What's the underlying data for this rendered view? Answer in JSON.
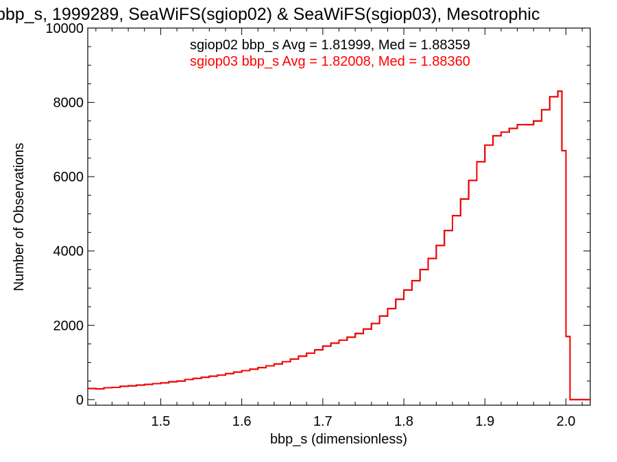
{
  "chart_data": {
    "type": "histogram",
    "title": "bbp_s, 1999289, SeaWiFS(sgiop02) & SeaWiFS(sgiop03), Mesotrophic",
    "xlabel": "bbp_s (dimensionless)",
    "ylabel": "Number of Observations",
    "xlim": [
      1.41,
      2.03
    ],
    "ylim": [
      -150,
      10000
    ],
    "xticks": [
      "1.5",
      "1.6",
      "1.7",
      "1.8",
      "1.9",
      "2.0"
    ],
    "xtick_values": [
      1.5,
      1.6,
      1.7,
      1.8,
      1.9,
      2.0
    ],
    "yticks": [
      "0",
      "2000",
      "4000",
      "6000",
      "8000",
      "10000"
    ],
    "ytick_values": [
      0,
      2000,
      4000,
      6000,
      8000,
      10000
    ],
    "annotations": [
      {
        "text": "sgiop02 bbp_s Avg = 1.81999, Med = 1.88359",
        "color": "#000000"
      },
      {
        "text": "sgiop03 bbp_s Avg = 1.82008, Med = 1.88360",
        "color": "#ff0000"
      }
    ],
    "series": [
      {
        "name": "sgiop02",
        "color": "#000000",
        "x": [
          1.41,
          1.42,
          1.43,
          1.44,
          1.45,
          1.46,
          1.47,
          1.48,
          1.49,
          1.5,
          1.51,
          1.52,
          1.53,
          1.54,
          1.55,
          1.56,
          1.57,
          1.58,
          1.59,
          1.6,
          1.61,
          1.62,
          1.63,
          1.64,
          1.65,
          1.66,
          1.67,
          1.68,
          1.69,
          1.7,
          1.71,
          1.72,
          1.73,
          1.74,
          1.75,
          1.76,
          1.77,
          1.78,
          1.79,
          1.8,
          1.81,
          1.82,
          1.83,
          1.84,
          1.85,
          1.86,
          1.87,
          1.88,
          1.89,
          1.9,
          1.91,
          1.92,
          1.93,
          1.94,
          1.95,
          1.96,
          1.97,
          1.98,
          1.99,
          1.995,
          2.0,
          2.005,
          2.03
        ],
        "y": [
          300,
          290,
          320,
          330,
          360,
          370,
          390,
          410,
          430,
          450,
          480,
          500,
          540,
          570,
          600,
          630,
          660,
          700,
          740,
          780,
          820,
          860,
          910,
          960,
          1020,
          1090,
          1170,
          1250,
          1340,
          1440,
          1520,
          1600,
          1680,
          1780,
          1900,
          2050,
          2250,
          2450,
          2700,
          2950,
          3200,
          3500,
          3800,
          4150,
          4550,
          4950,
          5400,
          5900,
          6400,
          6850,
          7100,
          7200,
          7300,
          7400,
          7400,
          7500,
          7800,
          8150,
          8300,
          6700,
          1700,
          0,
          0
        ]
      },
      {
        "name": "sgiop03",
        "color": "#ff0000",
        "x": [
          1.41,
          1.42,
          1.43,
          1.44,
          1.45,
          1.46,
          1.47,
          1.48,
          1.49,
          1.5,
          1.51,
          1.52,
          1.53,
          1.54,
          1.55,
          1.56,
          1.57,
          1.58,
          1.59,
          1.6,
          1.61,
          1.62,
          1.63,
          1.64,
          1.65,
          1.66,
          1.67,
          1.68,
          1.69,
          1.7,
          1.71,
          1.72,
          1.73,
          1.74,
          1.75,
          1.76,
          1.77,
          1.78,
          1.79,
          1.8,
          1.81,
          1.82,
          1.83,
          1.84,
          1.85,
          1.86,
          1.87,
          1.88,
          1.89,
          1.9,
          1.91,
          1.92,
          1.93,
          1.94,
          1.95,
          1.96,
          1.97,
          1.98,
          1.99,
          1.995,
          2.0,
          2.005,
          2.03
        ],
        "y": [
          300,
          290,
          320,
          330,
          360,
          370,
          390,
          410,
          430,
          450,
          480,
          500,
          540,
          570,
          600,
          630,
          660,
          700,
          740,
          780,
          820,
          860,
          910,
          960,
          1020,
          1090,
          1170,
          1250,
          1340,
          1440,
          1520,
          1600,
          1680,
          1780,
          1900,
          2050,
          2250,
          2450,
          2700,
          2950,
          3200,
          3500,
          3800,
          4150,
          4550,
          4950,
          5400,
          5900,
          6400,
          6850,
          7100,
          7200,
          7300,
          7400,
          7400,
          7500,
          7800,
          8150,
          8300,
          6700,
          1700,
          0,
          0
        ]
      }
    ]
  }
}
